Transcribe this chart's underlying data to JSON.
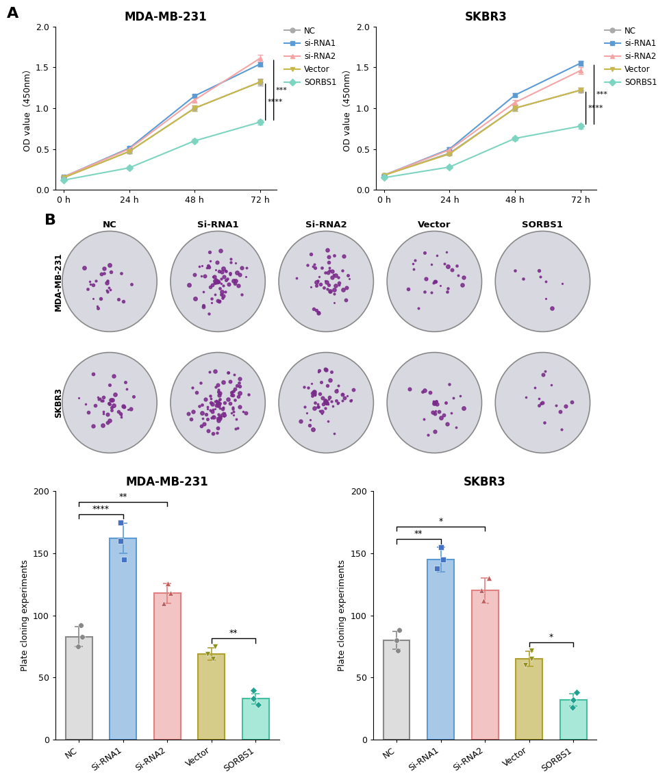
{
  "line_timepoints": [
    0,
    24,
    48,
    72
  ],
  "mda_lines": {
    "NC": {
      "y": [
        0.15,
        0.47,
        1.0,
        1.32
      ],
      "yerr": [
        0.01,
        0.02,
        0.03,
        0.04
      ],
      "color": "#aaaaaa",
      "marker": "o"
    },
    "si-RNA1": {
      "y": [
        0.16,
        0.51,
        1.15,
        1.54
      ],
      "yerr": [
        0.01,
        0.02,
        0.02,
        0.03
      ],
      "color": "#5b9bd5",
      "marker": "s"
    },
    "si-RNA2": {
      "y": [
        0.16,
        0.5,
        1.1,
        1.61
      ],
      "yerr": [
        0.01,
        0.02,
        0.03,
        0.04
      ],
      "color": "#f4a4a4",
      "marker": "^"
    },
    "Vector": {
      "y": [
        0.15,
        0.47,
        1.0,
        1.32
      ],
      "yerr": [
        0.01,
        0.02,
        0.03,
        0.03
      ],
      "color": "#c8b84a",
      "marker": "v"
    },
    "SORBS1": {
      "y": [
        0.12,
        0.27,
        0.6,
        0.83
      ],
      "yerr": [
        0.01,
        0.02,
        0.02,
        0.03
      ],
      "color": "#7dd4c0",
      "marker": "D"
    }
  },
  "skbr3_lines": {
    "NC": {
      "y": [
        0.18,
        0.45,
        1.0,
        1.22
      ],
      "yerr": [
        0.01,
        0.02,
        0.03,
        0.03
      ],
      "color": "#aaaaaa",
      "marker": "o"
    },
    "si-RNA1": {
      "y": [
        0.18,
        0.5,
        1.16,
        1.55
      ],
      "yerr": [
        0.01,
        0.02,
        0.02,
        0.03
      ],
      "color": "#5b9bd5",
      "marker": "s"
    },
    "si-RNA2": {
      "y": [
        0.18,
        0.49,
        1.07,
        1.46
      ],
      "yerr": [
        0.01,
        0.02,
        0.03,
        0.04
      ],
      "color": "#f4a4a4",
      "marker": "^"
    },
    "Vector": {
      "y": [
        0.18,
        0.44,
        1.0,
        1.22
      ],
      "yerr": [
        0.01,
        0.02,
        0.03,
        0.03
      ],
      "color": "#c8b84a",
      "marker": "v"
    },
    "SORBS1": {
      "y": [
        0.15,
        0.28,
        0.63,
        0.78
      ],
      "yerr": [
        0.01,
        0.02,
        0.02,
        0.03
      ],
      "color": "#7dd4c0",
      "marker": "D"
    }
  },
  "bar_categories": [
    "NC",
    "Si-RNA1",
    "Si-RNA2",
    "Vector",
    "SORBS1"
  ],
  "mda_bar": {
    "means": [
      83,
      162,
      118,
      69,
      33
    ],
    "errors": [
      8,
      12,
      8,
      5,
      4
    ],
    "colors": [
      "#dddddd",
      "#a8c8e8",
      "#f2c4c4",
      "#d4cc88",
      "#a8e8d8"
    ],
    "edge_colors": [
      "#888888",
      "#5b9bd5",
      "#e08080",
      "#b0a030",
      "#40c0a0"
    ],
    "dot_colors": [
      "#888888",
      "#4472c4",
      "#c06060",
      "#909020",
      "#20a090"
    ],
    "dot_values": [
      [
        75,
        83,
        92
      ],
      [
        145,
        160,
        175
      ],
      [
        110,
        118,
        126
      ],
      [
        65,
        69,
        75
      ],
      [
        28,
        33,
        40
      ]
    ],
    "dot_markers": [
      "o",
      "s",
      "^",
      "v",
      "D"
    ]
  },
  "skbr3_bar": {
    "means": [
      80,
      145,
      120,
      65,
      32
    ],
    "errors": [
      7,
      10,
      10,
      6,
      5
    ],
    "colors": [
      "#dddddd",
      "#a8c8e8",
      "#f2c4c4",
      "#d4cc88",
      "#a8e8d8"
    ],
    "edge_colors": [
      "#888888",
      "#5b9bd5",
      "#e08080",
      "#b0a030",
      "#40c0a0"
    ],
    "dot_colors": [
      "#888888",
      "#4472c4",
      "#c06060",
      "#909020",
      "#20a090"
    ],
    "dot_values": [
      [
        72,
        80,
        88
      ],
      [
        138,
        145,
        155
      ],
      [
        112,
        120,
        130
      ],
      [
        60,
        65,
        72
      ],
      [
        26,
        32,
        38
      ]
    ],
    "dot_markers": [
      "o",
      "s",
      "^",
      "v",
      "D"
    ]
  },
  "line_ylim": [
    0.0,
    2.0
  ],
  "bar_ylim": [
    0,
    200
  ],
  "bar_ylabel": "Plate cloning experiments",
  "mda_title": "MDA-MB-231",
  "skbr3_title": "SKBR3"
}
